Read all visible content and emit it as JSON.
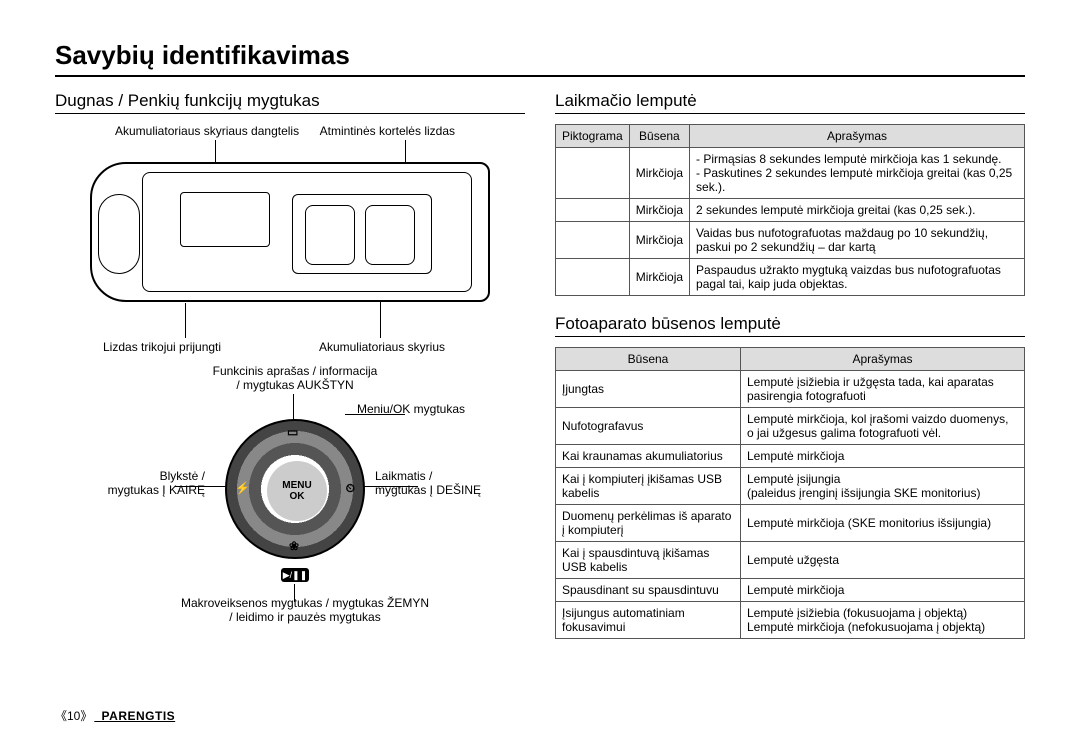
{
  "page": {
    "title": "Savybių identifikavimas",
    "footer_page": "《10》",
    "footer_section": "_PARENGTIS"
  },
  "left": {
    "section_title": "Dugnas / Penkių funkcijų mygtukas",
    "body_labels": {
      "top_left": "Akumuliatoriaus skyriaus dangtelis",
      "top_right": "Atmintinės kortelės lizdas",
      "bottom_left": "Lizdas trikojui prijungti",
      "bottom_right": "Akumuliatoriaus skyrius"
    },
    "dial_center": {
      "line1": "MENU",
      "line2": "OK"
    },
    "dial_glyphs": {
      "top": "▭",
      "left": "⚡",
      "right": "⏲",
      "bottom": "❀"
    },
    "playpause": "▶/❚❚",
    "dial_labels": {
      "top": "Funkcinis aprašas / informacija\n/ mygtukas AUKŠTYN",
      "menu": "Meniu/OK mygtukas",
      "left": "Blykstė /\nmygtukas Į KAIRĘ",
      "right": "Laikmatis /\nmygtukas Į DEŠINĘ",
      "bottom": "Makroveiksenos mygtukas / mygtukas ŽEMYN\n/ leidimo ir pauzės mygtukas"
    }
  },
  "right": {
    "timer_title": "Laikmačio lemputė",
    "status_title": "Fotoaparato būsenos lemputė",
    "table1": {
      "headers": [
        "Piktograma",
        "Būsena",
        "Aprašymas"
      ],
      "rows": [
        [
          "",
          "Mirkčioja",
          "- Pirmąsias 8 sekundes lemputė mirkčioja kas 1 sekundę.\n- Paskutines 2 sekundes lemputė mirkčioja greitai (kas 0,25 sek.)."
        ],
        [
          "",
          "Mirkčioja",
          "2 sekundes lemputė mirkčioja greitai (kas 0,25 sek.)."
        ],
        [
          "",
          "Mirkčioja",
          "Vaidas bus nufotografuotas maždaug po 10 sekundžių, paskui po 2 sekundžių – dar kartą"
        ],
        [
          "",
          "Mirkčioja",
          "Paspaudus užrakto mygtuką vaizdas bus nufotografuotas pagal tai, kaip juda objektas."
        ]
      ]
    },
    "table2": {
      "headers": [
        "Būsena",
        "Aprašymas"
      ],
      "rows": [
        [
          "Įjungtas",
          "Lemputė įsižiebia ir užgęsta tada, kai aparatas pasirengia fotografuoti"
        ],
        [
          "Nufotografavus",
          "Lemputė mirkčioja, kol įrašomi vaizdo duomenys, o jai užgesus galima fotografuoti vėl."
        ],
        [
          "Kai kraunamas akumuliatorius",
          "Lemputė mirkčioja"
        ],
        [
          "Kai į kompiuterį įkišamas USB kabelis",
          "Lemputė įsijungia\n(paleidus įrenginį išsijungia SKE monitorius)"
        ],
        [
          "Duomenų perkėlimas iš aparato į kompiuterį",
          "Lemputė mirkčioja (SKE monitorius išsijungia)"
        ],
        [
          "Kai į spausdintuvą įkišamas USB kabelis",
          "Lemputė užgęsta"
        ],
        [
          "Spausdinant su spausdintuvu",
          "Lemputė mirkčioja"
        ],
        [
          "Įsijungus automatiniam fokusavimui",
          "Lemputė įsižiebia (fokusuojama į objektą)\nLemputė mirkčioja (nefokusuojama į objektą)"
        ]
      ]
    }
  }
}
